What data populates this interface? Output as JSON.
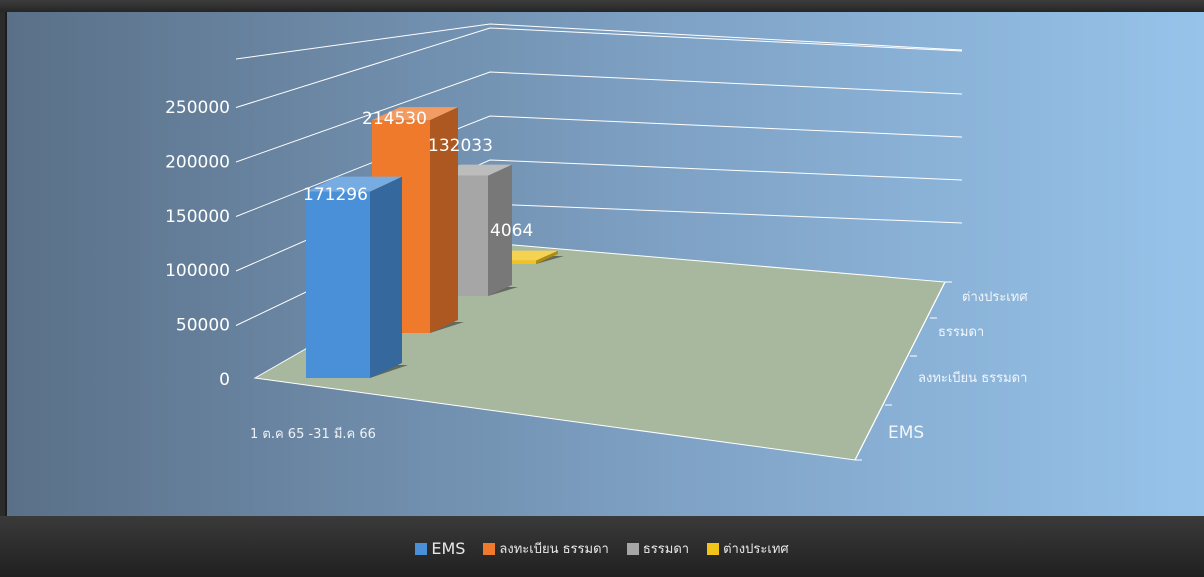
{
  "chart_data": {
    "type": "bar",
    "title": "",
    "xlabel": "",
    "ylabel": "",
    "ylim": [
      0,
      250000
    ],
    "y_ticks": [
      "250000",
      "200000",
      "150000",
      "100000",
      "50000",
      "0"
    ],
    "categories": [
      "1 ต.ค 65 -31 มี.ค 66"
    ],
    "depth_labels": [
      "ต่างประเทศ",
      "ธรรมดา",
      "ลงทะเบียน ธรรมดา",
      "EMS"
    ],
    "series": [
      {
        "name": "EMS",
        "values": [
          171296
        ],
        "value_label": "171296",
        "color": "#4a90d9"
      },
      {
        "name": "ลงทะเบียน ธรรมดา",
        "values": [
          214530
        ],
        "value_label": "214530",
        "color": "#f07a2c"
      },
      {
        "name": "ธรรมดา",
        "values": [
          132033
        ],
        "value_label": "132033",
        "color": "#a6a6a6"
      },
      {
        "name": "ต่างประเทศ",
        "values": [
          4064
        ],
        "value_label": "4064",
        "color": "#f2c318"
      }
    ],
    "legend_position": "bottom",
    "grid": true
  },
  "colors": {
    "plot_bg_left": "#5b7189",
    "plot_bg_right": "#95c0e6",
    "floor": "#a9b8a0",
    "legend_bg": "#2b2b2b"
  }
}
